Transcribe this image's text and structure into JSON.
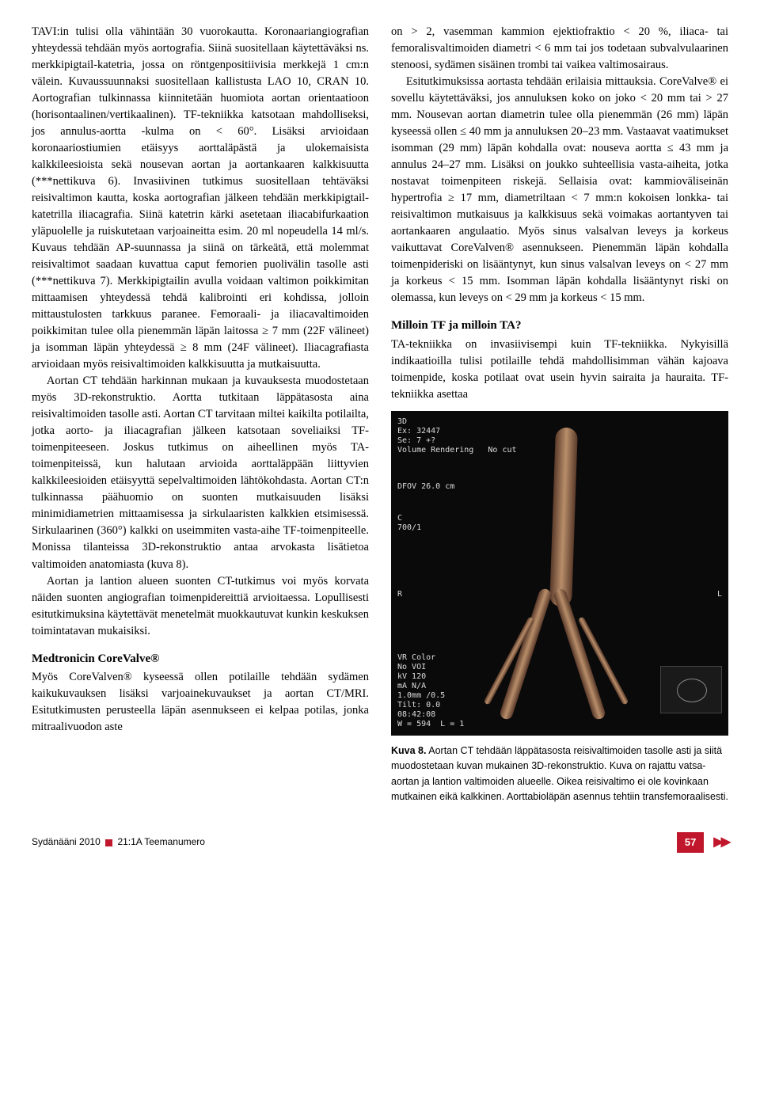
{
  "left_column": {
    "p1": "TAVI:in tulisi olla vähintään 30 vuorokautta. Koronaariangiografian yhteydessä tehdään myös aortografia. Siinä suositellaan käytettäväksi ns. merkkipigtail-katetria, jossa on röntgenpositiivisia merkkejä 1 cm:n välein. Kuvaussuunnaksi suositellaan kallistusta LAO 10, CRAN 10. Aortografian tulkinnassa kiinnitetään huomiota aortan orientaatioon (horisontaalinen/vertikaalinen). TF-tekniikka katsotaan mahdolliseksi, jos annulus-aortta -kulma on < 60°. Lisäksi arvioidaan koronaariostiumien etäisyys aorttaläpästä ja ulokemaisista kalkkileesioista sekä nousevan aortan ja aortankaaren kalkkisuutta (***nettikuva 6). Invasiivinen tutkimus suositellaan tehtäväksi reisivaltimon kautta, koska aortografian jälkeen tehdään merkkipigtail-katetrilla iliacagrafia. Siinä katetrin kärki asetetaan iliacabifurkaation yläpuolelle ja ruiskutetaan varjoaineitta esim. 20 ml nopeudella 14 ml/s. Kuvaus tehdään AP-suunnassa ja siinä on tärkeätä, että molemmat reisivaltimot saadaan kuvattua caput femorien puolivälin tasolle asti (***nettikuva 7). Merkkipigtailin avulla voidaan valtimon poikkimitan mittaamisen yhteydessä tehdä kalibrointi eri kohdissa, jolloin mittaustulosten tarkkuus paranee. Femoraali- ja iliacavaltimoiden poikkimitan tulee olla pienemmän läpän laitossa ≥ 7 mm (22F välineet) ja isomman läpän yhteydessä ≥ 8 mm (24F välineet). Iliacagrafiasta arvioidaan myös reisivaltimoiden kalkkisuutta ja mutkaisuutta.",
    "p2": "Aortan CT tehdään harkinnan mukaan ja kuvauksesta muodostetaan myös 3D-rekonstruktio. Aortta tutkitaan läppätasosta aina reisivaltimoiden tasolle asti. Aortan CT tarvitaan miltei kaikilta potilailta, jotka aorto- ja iliacagrafian jälkeen katsotaan soveliaiksi TF-toimenpiteeseen. Joskus tutkimus on aiheellinen myös TA-toimenpiteissä, kun halutaan arvioida aorttaläppään liittyvien kalkkileesioiden etäisyyttä sepelvaltimoiden lähtökohdasta. Aortan CT:n tulkinnassa päähuomio on suonten mutkaisuuden lisäksi minimidiametrien mittaamisessa ja sirkulaaristen kalkkien etsimisessä. Sirkulaarinen (360°) kalkki on useimmiten vasta-aihe TF-toimenpiteelle. Monissa tilanteissa 3D-rekonstruktio antaa arvokasta lisätietoa valtimoiden anatomiasta (kuva 8).",
    "p3": "Aortan ja lantion alueen suonten CT-tutkimus voi myös korvata näiden suonten angiografian toimenpidereittiä arvioitaessa. Lopullisesti esitutkimuksina käytettävät menetelmät muokkautuvat kunkin keskuksen toimintatavan mukaisiksi.",
    "section_title": "Medtronicin CoreValve®",
    "p4": "Myös CoreValven® kyseessä ollen potilaille tehdään sydämen kaikukuvauksen lisäksi varjoainekuvaukset ja aortan CT/MRI. Esitutkimusten perusteella läpän asennukseen ei kelpaa potilas, jonka mitraalivuodon aste"
  },
  "right_column": {
    "p1": "on > 2, vasemman kammion ejektiofraktio < 20 %, iliaca- tai femoralisvaltimoiden diametri < 6 mm tai jos todetaan subvalvulaarinen stenoosi, sydämen sisäinen trombi tai vaikea valtimosairaus.",
    "p2": "Esitutkimuksissa aortasta tehdään erilaisia mittauksia. CoreValve® ei sovellu käytettäväksi, jos annuluksen koko on joko < 20 mm tai > 27 mm. Nousevan aortan diametrin tulee olla pienemmän (26 mm) läpän kyseessä ollen ≤ 40 mm ja annuluksen 20–23 mm. Vastaavat vaatimukset isomman (29 mm) läpän kohdalla ovat: nouseva aortta ≤ 43 mm ja annulus 24–27 mm. Lisäksi on joukko suhteellisia vasta-aiheita, jotka nostavat toimenpiteen riskejä. Sellaisia ovat: kammioväliseinän hypertrofia ≥ 17 mm, diametriltaan < 7 mm:n kokoisen lonkka- tai reisivaltimon mutkaisuus ja kalkkisuus sekä voimakas aortantyven tai aortankaaren angulaatio. Myös sinus valsalvan leveys ja korkeus vaikuttavat CoreValven® asennukseen. Pienemmän läpän kohdalla toimenpideriski on lisääntynyt, kun sinus valsalvan leveys on < 27 mm ja korkeus < 15 mm. Isomman läpän kohdalla lisääntynyt riski on olemassa, kun leveys on < 29 mm ja korkeus < 15 mm.",
    "section_title": "Milloin TF ja milloin TA?",
    "p3": "TA-tekniikka on invasiivisempi kuin TF-tekniikka. Nykyisillä indikaatioilla tulisi potilaille tehdä mahdollisimman vähän kajoava toimenpide, koska potilaat ovat usein hyvin sairaita ja hauraita. TF-tekniikka asettaa",
    "figure": {
      "overlay_top": "3D\nEx: 32447\nSe: 7 +?\nVolume Rendering   No cut",
      "overlay_mid1": "DFOV 26.0 cm",
      "overlay_mid2": "C\n700/1",
      "overlay_bottom": "VR Color\nNo VOI\nkV 120\nmA N/A\n1.0mm /0.5\nTilt: 0.0\n08:42:08\nW = 594  L = 1",
      "marker_R": "R",
      "marker_L": "L",
      "caption_bold": "Kuva 8.",
      "caption": " Aortan CT tehdään läppätasosta reisivaltimoiden tasolle asti ja siitä muodostetaan kuvan mukainen 3D-rekonstruktio. Kuva on rajattu vatsa-aortan ja lantion valtimoiden alueelle. Oikea reisivaltimo ei ole kovinkaan mutkainen eikä kalkkinen. Aorttabioläpän asennus tehtiin transfemoraalisesti."
    }
  },
  "footer": {
    "journal": "Sydänääni 2010",
    "issue": "21:1A Teemanumero",
    "page_number": "57"
  },
  "colors": {
    "accent_red": "#c1172c",
    "text": "#000000",
    "bg": "#ffffff"
  }
}
